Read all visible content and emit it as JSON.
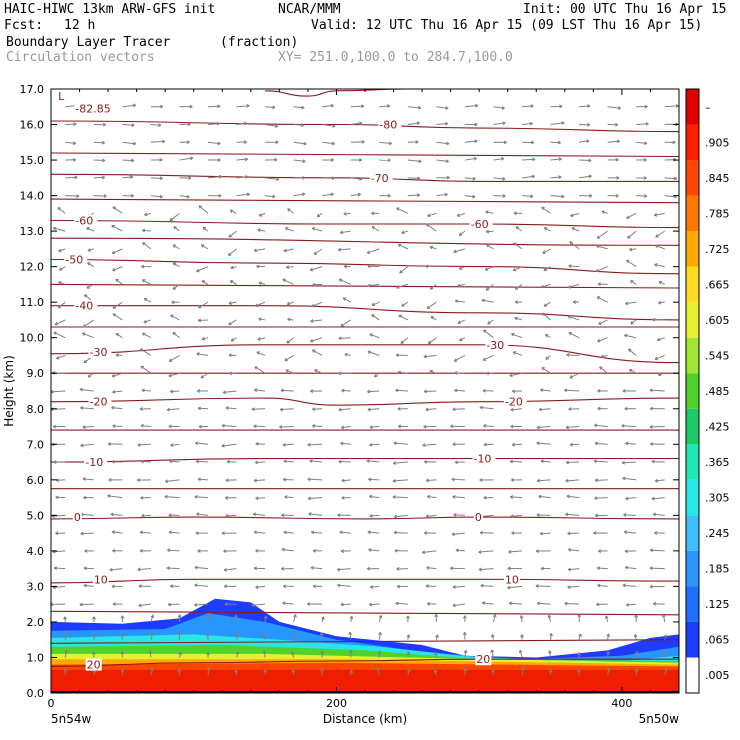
{
  "header": {
    "model": "HAIC-HIWC 13km ARW-GFS init",
    "center": "NCAR/MMM",
    "init": "Init: 00 UTC Thu 16 Apr 15",
    "fcst_label": "Fcst:",
    "fcst_value": "12 h",
    "valid": "Valid: 12 UTC Thu 16 Apr 15 (09 LST Thu 16 Apr 15)",
    "field": "Boundary Layer Tracer",
    "field_units": "(fraction)",
    "vectors": "Circulation vectors",
    "xy": "XY= 251.0,100.0 to 284.7,100.0"
  },
  "chart_data": {
    "type": "cross-section",
    "xlabel": "Distance (km)",
    "ylabel": "Height (km)",
    "xlim": [
      0,
      440
    ],
    "ylim": [
      0,
      17
    ],
    "x_ticks": [
      0,
      200,
      400
    ],
    "y_ticks": [
      "0.0",
      "1.0",
      "2.0",
      "3.0",
      "4.0",
      "5.0",
      "6.0",
      "7.0",
      "8.0",
      "9.0",
      "10.0",
      "11.0",
      "12.0",
      "13.0",
      "14.0",
      "15.0",
      "16.0",
      "17.0"
    ],
    "x_end_labels": [
      "5n54w",
      "5n50w"
    ],
    "colorbar": {
      "labels": [
        ".005",
        ".065",
        ".125",
        ".185",
        ".245",
        ".305",
        ".365",
        ".425",
        ".485",
        ".545",
        ".605",
        ".665",
        ".725",
        ".785",
        ".845",
        ".905",
        "–"
      ],
      "colors": [
        "#ffffff",
        "#1e3cff",
        "#1e6eff",
        "#2896ff",
        "#3cbeff",
        "#28e6e6",
        "#1ee6b4",
        "#1ec864",
        "#50d228",
        "#a0e632",
        "#e6f032",
        "#ffdc1e",
        "#ffaa00",
        "#ff7800",
        "#ff4600",
        "#ff1e00",
        "#dc0000"
      ]
    },
    "contour_labels": [
      {
        "text": "L",
        "x": 5,
        "y": 16.8
      },
      {
        "text": "-82.85",
        "x": 17,
        "y": 16.45
      },
      {
        "text": "-80",
        "x": 230,
        "y": 16.0
      },
      {
        "text": "-70",
        "x": 224,
        "y": 14.5
      },
      {
        "text": "-60",
        "x": 17,
        "y": 13.3
      },
      {
        "text": "-60",
        "x": 294,
        "y": 13.2
      },
      {
        "text": "-50",
        "x": 10,
        "y": 12.2
      },
      {
        "text": "-40",
        "x": 17,
        "y": 10.9
      },
      {
        "text": "-30",
        "x": 27,
        "y": 9.6
      },
      {
        "text": "-30",
        "x": 305,
        "y": 9.8
      },
      {
        "text": "-20",
        "x": 27,
        "y": 8.2
      },
      {
        "text": "-20",
        "x": 318,
        "y": 8.2
      },
      {
        "text": "-10",
        "x": 24,
        "y": 6.5
      },
      {
        "text": "-10",
        "x": 296,
        "y": 6.6
      },
      {
        "text": "0",
        "x": 16,
        "y": 4.95
      },
      {
        "text": "0",
        "x": 297,
        "y": 4.95
      },
      {
        "text": "10",
        "x": 30,
        "y": 3.2
      },
      {
        "text": "10",
        "x": 318,
        "y": 3.2
      },
      {
        "text": "20",
        "x": 25,
        "y": 0.8
      },
      {
        "text": "20",
        "x": 298,
        "y": 0.95
      }
    ],
    "isotherms": [
      {
        "value": 20,
        "pts": [
          [
            0,
            0.75
          ],
          [
            100,
            0.85
          ],
          [
            200,
            0.9
          ],
          [
            300,
            0.95
          ],
          [
            440,
            0.95
          ]
        ]
      },
      {
        "value": 10,
        "pts": [
          [
            0,
            3.1
          ],
          [
            100,
            3.2
          ],
          [
            200,
            3.2
          ],
          [
            300,
            3.2
          ],
          [
            440,
            3.15
          ]
        ]
      },
      {
        "value": 0,
        "pts": [
          [
            0,
            4.9
          ],
          [
            100,
            4.95
          ],
          [
            220,
            4.9
          ],
          [
            300,
            4.95
          ],
          [
            440,
            4.9
          ]
        ]
      },
      {
        "value": -10,
        "pts": [
          [
            0,
            6.5
          ],
          [
            150,
            6.6
          ],
          [
            300,
            6.6
          ],
          [
            440,
            6.6
          ]
        ]
      },
      {
        "value": -20,
        "pts": [
          [
            0,
            8.2
          ],
          [
            150,
            8.3
          ],
          [
            200,
            8.1
          ],
          [
            300,
            8.2
          ],
          [
            440,
            8.3
          ]
        ]
      },
      {
        "value": -30,
        "pts": [
          [
            0,
            9.55
          ],
          [
            150,
            9.8
          ],
          [
            300,
            9.8
          ],
          [
            440,
            9.3
          ]
        ]
      },
      {
        "value": -40,
        "pts": [
          [
            0,
            10.9
          ],
          [
            150,
            10.9
          ],
          [
            300,
            10.7
          ],
          [
            440,
            10.5
          ]
        ]
      },
      {
        "value": -50,
        "pts": [
          [
            0,
            12.2
          ],
          [
            150,
            12.1
          ],
          [
            300,
            12.0
          ],
          [
            440,
            11.8
          ]
        ]
      },
      {
        "value": -60,
        "pts": [
          [
            0,
            13.3
          ],
          [
            200,
            13.2
          ],
          [
            300,
            13.2
          ],
          [
            440,
            13.1
          ]
        ]
      },
      {
        "value": -70,
        "pts": [
          [
            0,
            14.6
          ],
          [
            200,
            14.5
          ],
          [
            300,
            14.4
          ],
          [
            440,
            14.4
          ]
        ]
      },
      {
        "value": -80,
        "pts": [
          [
            0,
            16.1
          ],
          [
            200,
            16.0
          ],
          [
            300,
            15.9
          ],
          [
            440,
            15.8
          ]
        ]
      }
    ],
    "extra_lines": [
      [
        [
          0,
          5.75
        ],
        [
          440,
          5.75
        ]
      ],
      [
        [
          0,
          7.4
        ],
        [
          440,
          7.4
        ]
      ],
      [
        [
          0,
          9.0
        ],
        [
          440,
          9.0
        ]
      ],
      [
        [
          0,
          10.3
        ],
        [
          440,
          10.3
        ]
      ],
      [
        [
          0,
          11.5
        ],
        [
          440,
          11.4
        ]
      ],
      [
        [
          0,
          12.8
        ],
        [
          440,
          12.6
        ]
      ],
      [
        [
          0,
          13.9
        ],
        [
          440,
          13.8
        ]
      ],
      [
        [
          0,
          15.2
        ],
        [
          440,
          15.1
        ]
      ],
      [
        [
          0,
          2.3
        ],
        [
          440,
          2.2
        ]
      ],
      [
        [
          0,
          1.4
        ],
        [
          440,
          1.5
        ]
      ]
    ],
    "cap_line": [
      [
        150,
        16.95
      ],
      [
        180,
        16.8
      ],
      [
        200,
        16.95
      ],
      [
        250,
        17.0
      ]
    ],
    "tracer_regions": [
      {
        "color": "#1e3cff",
        "pts": [
          [
            0,
            2.0
          ],
          [
            50,
            1.95
          ],
          [
            90,
            2.1
          ],
          [
            115,
            2.65
          ],
          [
            140,
            2.55
          ],
          [
            160,
            2.0
          ],
          [
            200,
            1.6
          ],
          [
            260,
            1.35
          ],
          [
            290,
            1.05
          ],
          [
            340,
            1.0
          ],
          [
            390,
            1.2
          ],
          [
            420,
            1.55
          ],
          [
            440,
            1.65
          ],
          [
            440,
            0
          ],
          [
            0,
            0
          ]
        ]
      },
      {
        "color": "#2896ff",
        "pts": [
          [
            0,
            1.75
          ],
          [
            80,
            1.8
          ],
          [
            110,
            2.25
          ],
          [
            150,
            2.0
          ],
          [
            200,
            1.5
          ],
          [
            270,
            1.1
          ],
          [
            330,
            0.95
          ],
          [
            400,
            1.05
          ],
          [
            440,
            1.3
          ],
          [
            440,
            0
          ],
          [
            0,
            0
          ]
        ]
      },
      {
        "color": "#28e6e6",
        "pts": [
          [
            0,
            1.55
          ],
          [
            100,
            1.65
          ],
          [
            160,
            1.5
          ],
          [
            230,
            1.3
          ],
          [
            300,
            1.0
          ],
          [
            400,
            0.9
          ],
          [
            440,
            1.05
          ],
          [
            440,
            0
          ],
          [
            0,
            0
          ]
        ]
      },
      {
        "color": "#50d228",
        "pts": [
          [
            0,
            1.3
          ],
          [
            120,
            1.35
          ],
          [
            220,
            1.2
          ],
          [
            300,
            0.95
          ],
          [
            440,
            0.9
          ],
          [
            440,
            0
          ],
          [
            0,
            0
          ]
        ]
      },
      {
        "color": "#e6f032",
        "pts": [
          [
            0,
            1.1
          ],
          [
            150,
            1.1
          ],
          [
            250,
            1.0
          ],
          [
            440,
            0.85
          ],
          [
            440,
            0
          ],
          [
            0,
            0
          ]
        ]
      },
      {
        "color": "#ffaa00",
        "pts": [
          [
            0,
            0.95
          ],
          [
            200,
            0.95
          ],
          [
            440,
            0.8
          ],
          [
            440,
            0
          ],
          [
            0,
            0
          ]
        ]
      },
      {
        "color": "#ff4600",
        "pts": [
          [
            0,
            0.8
          ],
          [
            200,
            0.85
          ],
          [
            440,
            0.75
          ],
          [
            440,
            0
          ],
          [
            0,
            0
          ]
        ]
      },
      {
        "color": "#f01e00",
        "pts": [
          [
            0,
            0.65
          ],
          [
            440,
            0.65
          ],
          [
            440,
            0
          ],
          [
            0,
            0
          ]
        ]
      }
    ],
    "vector_color": "#7f7f7f",
    "isotherm_color": "#8b1a1a"
  }
}
